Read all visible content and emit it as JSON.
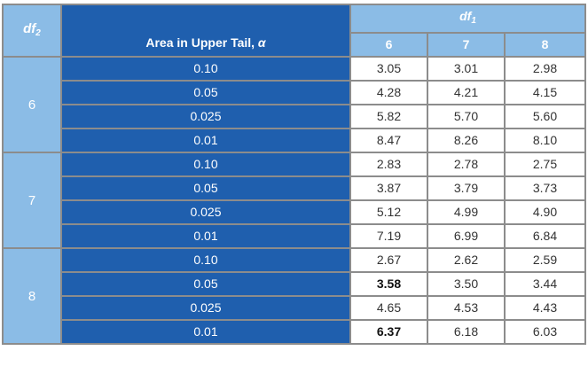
{
  "header": {
    "df2_label": "df",
    "df2_sub": "2",
    "area_label": "Area in Upper Tail, ",
    "alpha_symbol": "α",
    "df1_label": "df",
    "df1_sub": "1",
    "df1_columns": [
      "6",
      "7",
      "8"
    ]
  },
  "groups": [
    {
      "df2": "6",
      "rows": [
        {
          "area": "0.10",
          "values": [
            "3.05",
            "3.01",
            "2.98"
          ]
        },
        {
          "area": "0.05",
          "values": [
            "4.28",
            "4.21",
            "4.15"
          ]
        },
        {
          "area": "0.025",
          "values": [
            "5.82",
            "5.70",
            "5.60"
          ]
        },
        {
          "area": "0.01",
          "values": [
            "8.47",
            "8.26",
            "8.10"
          ]
        }
      ]
    },
    {
      "df2": "7",
      "rows": [
        {
          "area": "0.10",
          "values": [
            "2.83",
            "2.78",
            "2.75"
          ]
        },
        {
          "area": "0.05",
          "values": [
            "3.87",
            "3.79",
            "3.73"
          ]
        },
        {
          "area": "0.025",
          "values": [
            "5.12",
            "4.99",
            "4.90"
          ]
        },
        {
          "area": "0.01",
          "values": [
            "7.19",
            "6.99",
            "6.84"
          ]
        }
      ]
    },
    {
      "df2": "8",
      "rows": [
        {
          "area": "0.10",
          "values": [
            "2.67",
            "2.62",
            "2.59"
          ]
        },
        {
          "area": "0.05",
          "values": [
            "3.58",
            "3.50",
            "3.44"
          ]
        },
        {
          "area": "0.025",
          "values": [
            "4.65",
            "4.53",
            "4.43"
          ]
        },
        {
          "area": "0.01",
          "values": [
            "6.37",
            "6.18",
            "6.03"
          ]
        }
      ]
    }
  ],
  "bold_cells": [
    [
      2,
      1,
      0
    ],
    [
      2,
      3,
      0
    ]
  ],
  "colors": {
    "light_blue": "#8bbce6",
    "dark_blue": "#1f5fae",
    "border_gray": "#8c8c8c"
  }
}
